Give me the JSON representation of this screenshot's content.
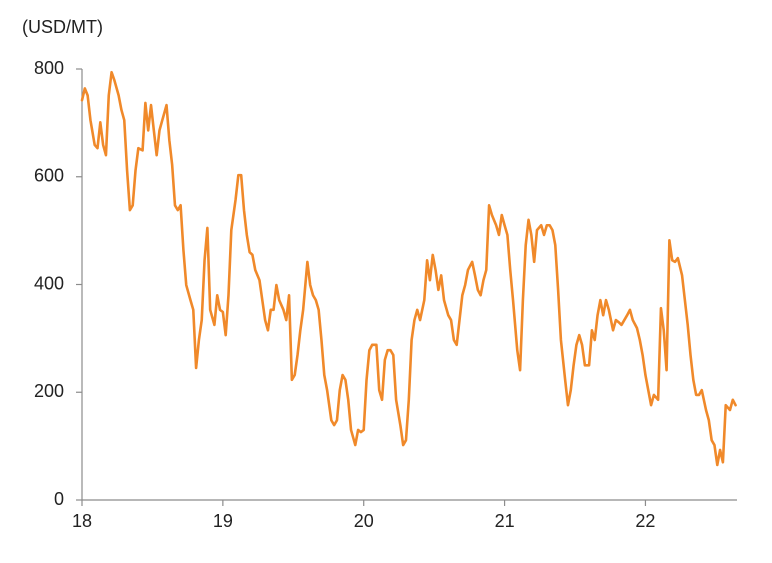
{
  "chart_data": {
    "type": "line",
    "y_label": "(USD/MT)",
    "color": "#f0892a",
    "xlim": [
      18,
      22.65
    ],
    "xticks": [
      18,
      19,
      20,
      21,
      22
    ],
    "ylim": [
      0,
      800
    ],
    "yticks": [
      0,
      200,
      400,
      600,
      800
    ],
    "x": [
      18.0,
      18.02,
      18.04,
      18.06,
      18.09,
      18.11,
      18.13,
      18.15,
      18.17,
      18.19,
      18.21,
      18.23,
      18.26,
      18.28,
      18.3,
      18.32,
      18.34,
      18.36,
      18.38,
      18.4,
      18.43,
      18.45,
      18.47,
      18.49,
      18.51,
      18.53,
      18.55,
      18.57,
      18.6,
      18.62,
      18.64,
      18.66,
      18.68,
      18.7,
      18.72,
      18.74,
      18.77,
      18.79,
      18.81,
      18.83,
      18.85,
      18.87,
      18.89,
      18.91,
      18.94,
      18.96,
      18.98,
      19.0,
      19.02,
      19.04,
      19.06,
      19.09,
      19.11,
      19.13,
      19.15,
      19.17,
      19.19,
      19.21,
      19.23,
      19.26,
      19.28,
      19.3,
      19.32,
      19.34,
      19.36,
      19.38,
      19.4,
      19.43,
      19.45,
      19.47,
      19.49,
      19.51,
      19.53,
      19.55,
      19.57,
      19.6,
      19.62,
      19.64,
      19.66,
      19.68,
      19.7,
      19.72,
      19.74,
      19.77,
      19.79,
      19.81,
      19.83,
      19.85,
      19.87,
      19.89,
      19.91,
      19.94,
      19.96,
      19.98,
      20.0,
      20.02,
      20.04,
      20.06,
      20.09,
      20.11,
      20.13,
      20.15,
      20.17,
      20.19,
      20.21,
      20.23,
      20.26,
      20.28,
      20.3,
      20.32,
      20.34,
      20.36,
      20.38,
      20.4,
      20.43,
      20.45,
      20.47,
      20.49,
      20.51,
      20.53,
      20.55,
      20.57,
      20.6,
      20.62,
      20.64,
      20.66,
      20.68,
      20.7,
      20.72,
      20.74,
      20.77,
      20.79,
      20.81,
      20.83,
      20.85,
      20.87,
      20.89,
      20.91,
      20.94,
      20.96,
      20.98,
      21.0,
      21.02,
      21.04,
      21.06,
      21.09,
      21.11,
      21.13,
      21.15,
      21.17,
      21.19,
      21.21,
      21.23,
      21.26,
      21.28,
      21.3,
      21.32,
      21.34,
      21.36,
      21.38,
      21.4,
      21.43,
      21.45,
      21.47,
      21.49,
      21.51,
      21.53,
      21.55,
      21.57,
      21.6,
      21.62,
      21.64,
      21.66,
      21.68,
      21.7,
      21.72,
      21.74,
      21.77,
      21.79,
      21.81,
      21.83,
      21.85,
      21.87,
      21.89,
      21.91,
      21.94,
      21.96,
      21.98,
      22.0,
      22.02,
      22.04,
      22.06,
      22.09,
      22.11,
      22.13,
      22.15,
      22.17,
      22.19,
      22.21,
      22.23,
      22.26,
      22.28,
      22.3,
      22.32,
      22.34,
      22.36,
      22.38,
      22.4,
      22.43,
      22.45,
      22.47,
      22.49,
      22.51,
      22.53,
      22.55,
      22.57,
      22.6,
      22.62,
      22.64
    ],
    "values": [
      742,
      764,
      751,
      705,
      659,
      653,
      701,
      659,
      640,
      751,
      794,
      779,
      751,
      724,
      705,
      612,
      538,
      547,
      612,
      653,
      649,
      737,
      686,
      733,
      686,
      640,
      686,
      705,
      733,
      668,
      622,
      547,
      538,
      547,
      464,
      399,
      371,
      353,
      245,
      297,
      334,
      445,
      505,
      353,
      325,
      380,
      353,
      349,
      306,
      380,
      501,
      557,
      603,
      603,
      538,
      492,
      460,
      455,
      427,
      408,
      371,
      334,
      315,
      353,
      353,
      399,
      371,
      353,
      334,
      380,
      223,
      232,
      269,
      315,
      353,
      442,
      399,
      380,
      371,
      353,
      297,
      232,
      204,
      148,
      139,
      148,
      204,
      232,
      223,
      186,
      130,
      102,
      130,
      126,
      130,
      223,
      278,
      288,
      288,
      204,
      186,
      260,
      278,
      278,
      269,
      186,
      139,
      102,
      111,
      186,
      297,
      334,
      353,
      334,
      371,
      445,
      408,
      455,
      427,
      390,
      417,
      371,
      343,
      334,
      297,
      288,
      334,
      380,
      399,
      427,
      442,
      417,
      390,
      380,
      408,
      427,
      547,
      529,
      510,
      492,
      529,
      510,
      492,
      427,
      371,
      278,
      241,
      371,
      473,
      520,
      492,
      442,
      501,
      510,
      492,
      510,
      510,
      501,
      473,
      390,
      297,
      223,
      176,
      204,
      250,
      288,
      306,
      288,
      250,
      250,
      315,
      297,
      343,
      371,
      343,
      371,
      353,
      315,
      334,
      330,
      325,
      334,
      343,
      353,
      334,
      319,
      297,
      269,
      232,
      204,
      176,
      195,
      186,
      356,
      315,
      241,
      482,
      445,
      442,
      449,
      417,
      371,
      325,
      269,
      223,
      195,
      195,
      204,
      167,
      148,
      111,
      102,
      65,
      93,
      70,
      176,
      167,
      186,
      176
    ]
  }
}
